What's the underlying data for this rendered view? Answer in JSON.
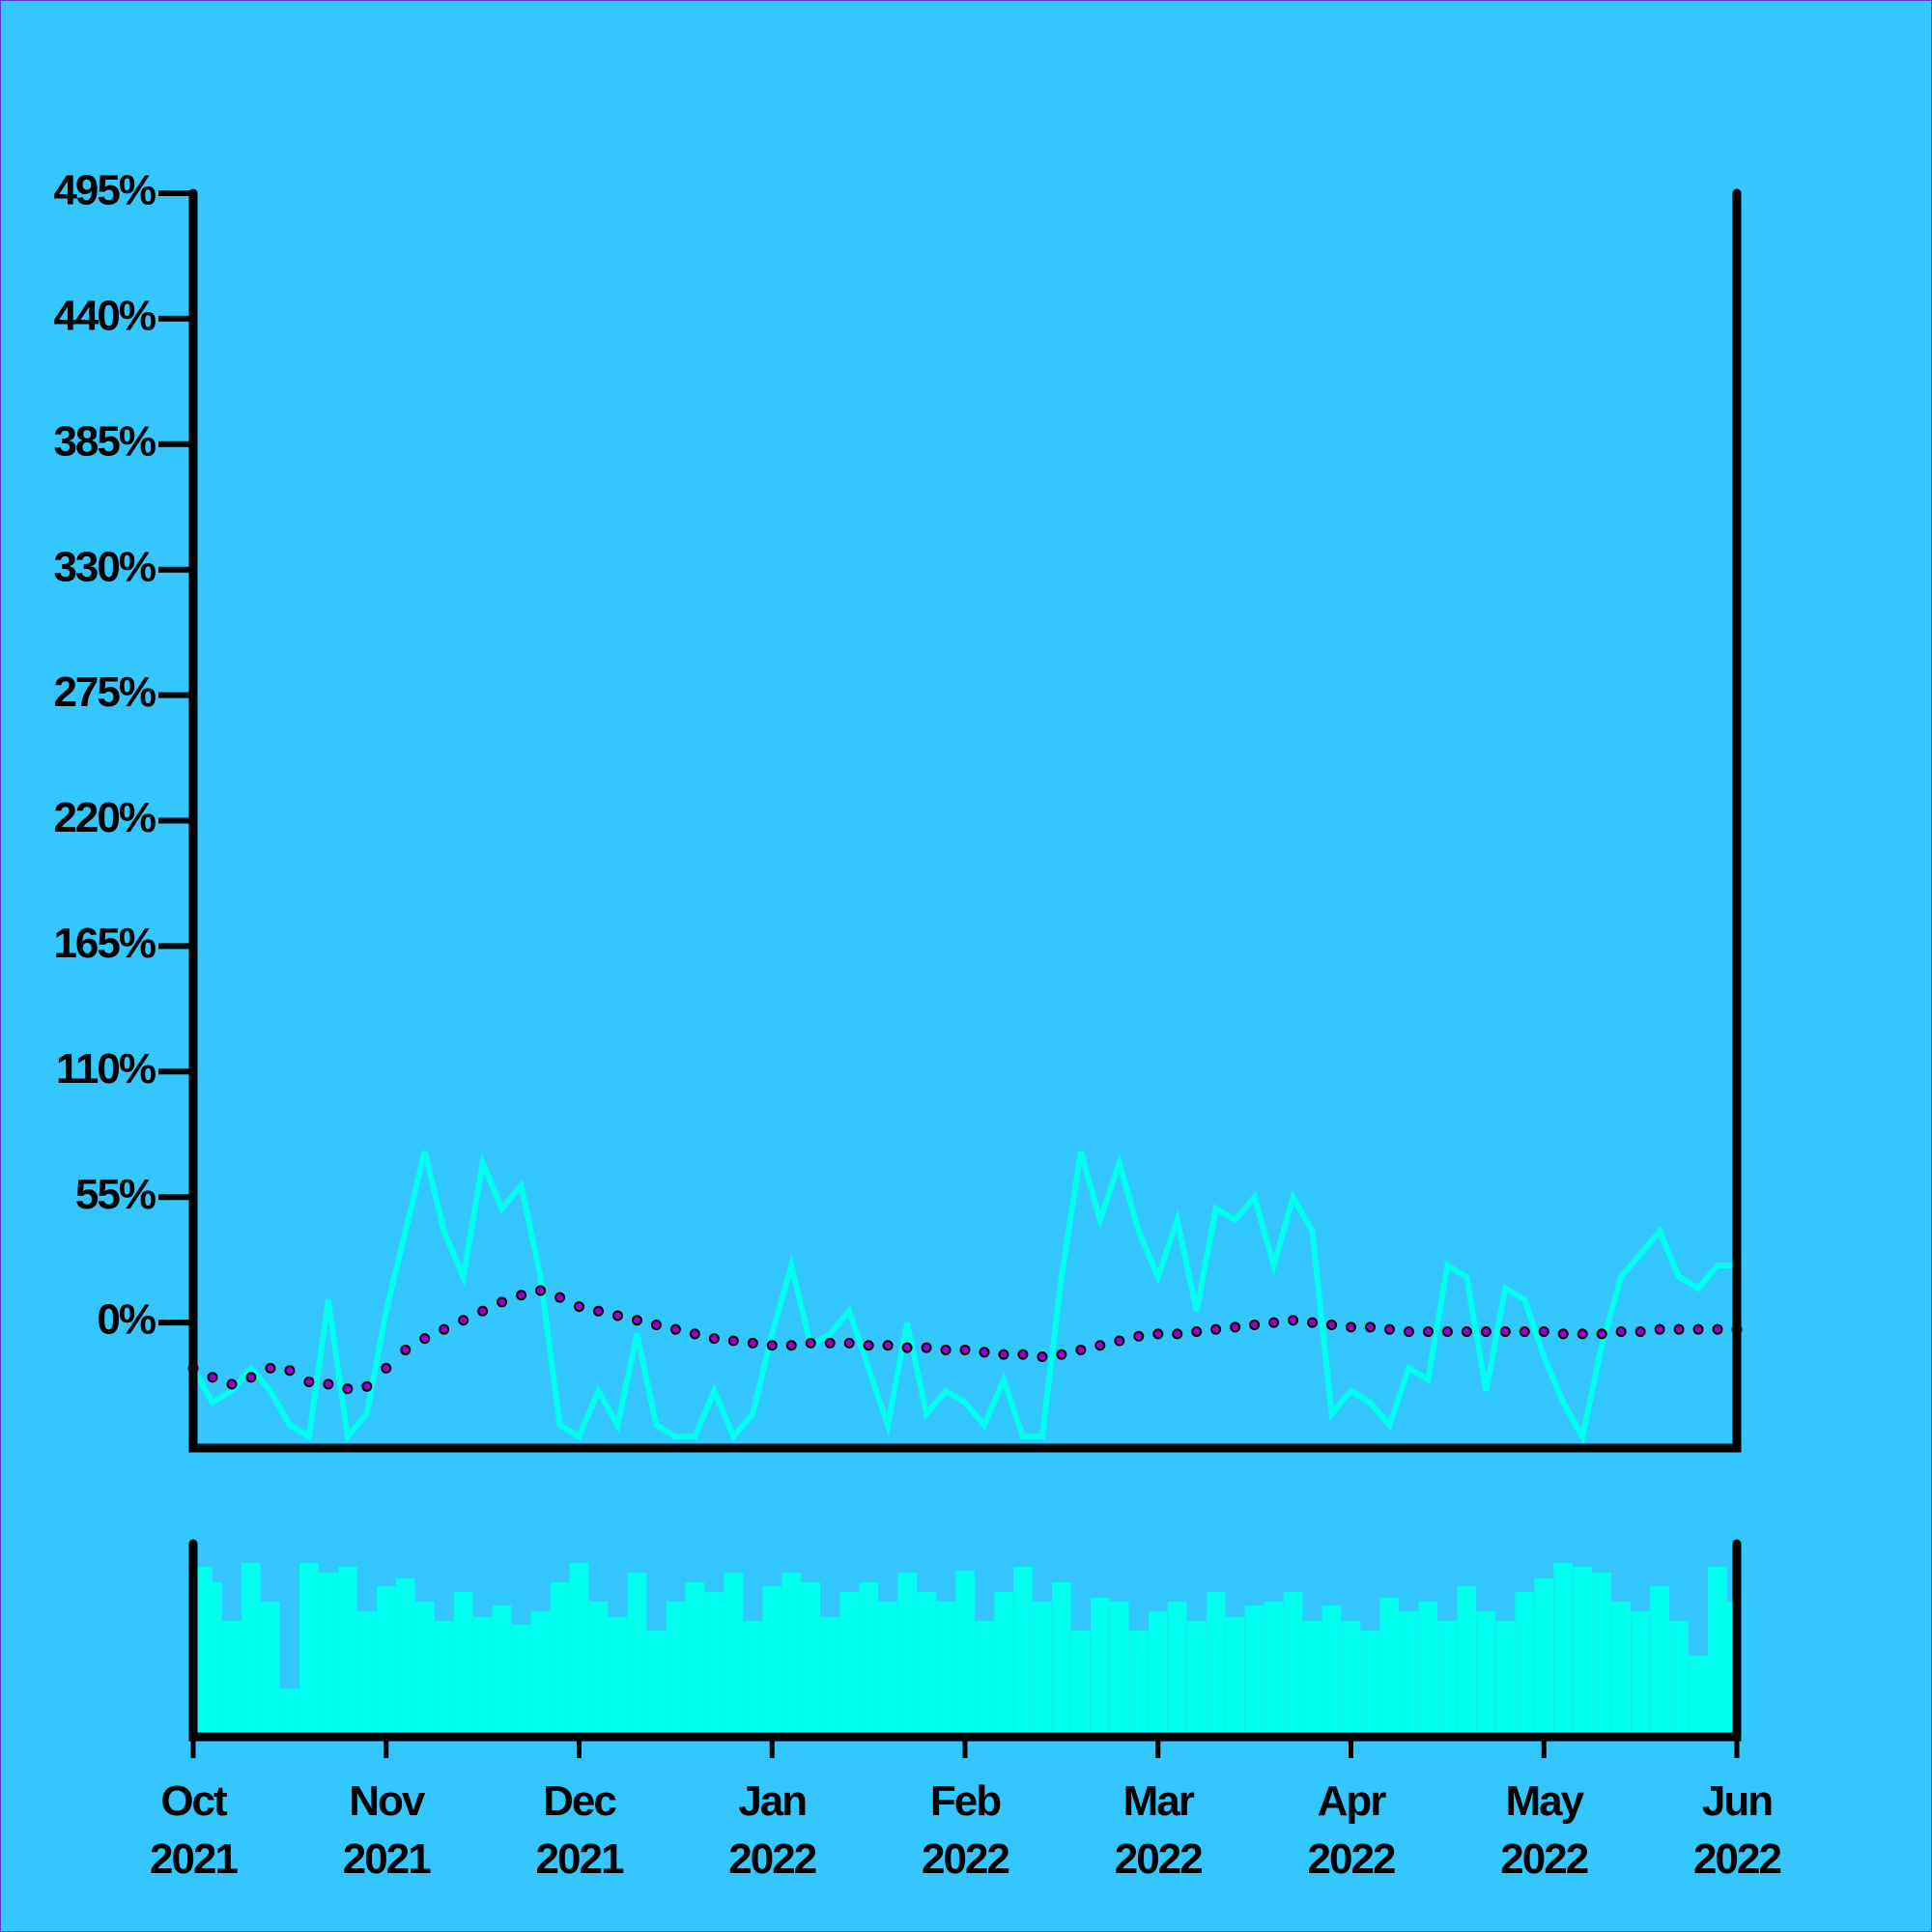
{
  "chart_data": [
    {
      "type": "line",
      "x": [
        0,
        0.1,
        0.2,
        0.3,
        0.4,
        0.5,
        0.6,
        0.7,
        0.8,
        0.9,
        1,
        1.1,
        1.2,
        1.3,
        1.4,
        1.5,
        1.6,
        1.7,
        1.8,
        1.9,
        2,
        2.1,
        2.2,
        2.3,
        2.4,
        2.5,
        2.6,
        2.7,
        2.8,
        2.9,
        3,
        3.1,
        3.2,
        3.3,
        3.4,
        3.5,
        3.6,
        3.7,
        3.8,
        3.9,
        4,
        4.1,
        4.2,
        4.3,
        4.4,
        4.5,
        4.6,
        4.7,
        4.8,
        4.9,
        5,
        5.1,
        5.2,
        5.3,
        5.4,
        5.5,
        5.6,
        5.7,
        5.8,
        5.9,
        6,
        6.1,
        6.2,
        6.3,
        6.4,
        6.5,
        6.6,
        6.7,
        6.8,
        6.9,
        7,
        7.1,
        7.2,
        7.3,
        7.4,
        7.5,
        7.6,
        7.7,
        7.8,
        7.9,
        8
      ],
      "series": [
        {
          "color": "#00ffee",
          "style": "solid",
          "values": [
            -20,
            -35,
            -30,
            -20,
            -30,
            -45,
            -50,
            10,
            -50,
            -40,
            5,
            40,
            75,
            40,
            20,
            70,
            50,
            60,
            20,
            -45,
            -50,
            -30,
            -45,
            -5,
            -45,
            -50,
            -50,
            -30,
            -50,
            -40,
            -5,
            25,
            -10,
            -5,
            5,
            -20,
            -45,
            0,
            -40,
            -30,
            -35,
            -45,
            -25,
            -50,
            -50,
            20,
            75,
            45,
            70,
            40,
            20,
            45,
            5,
            50,
            45,
            55,
            25,
            55,
            40,
            -40,
            -30,
            -35,
            -45,
            -20,
            -25,
            25,
            20,
            -30,
            15,
            10,
            -15,
            -35,
            -50,
            -10,
            20,
            30,
            40,
            20,
            15,
            25,
            25
          ]
        },
        {
          "color": "#9900cc",
          "style": "dots",
          "values": [
            -20,
            -24,
            -27,
            -24,
            -20,
            -21,
            -26,
            -27,
            -29,
            -28,
            -20,
            -12,
            -7,
            -3,
            1,
            5,
            9,
            12,
            14,
            11,
            7,
            5,
            3,
            1,
            -1,
            -3,
            -5,
            -7,
            -8,
            -9,
            -10,
            -10,
            -9,
            -9,
            -9,
            -10,
            -10,
            -11,
            -11,
            -12,
            -12,
            -13,
            -14,
            -14,
            -15,
            -14,
            -12,
            -10,
            -8,
            -6,
            -5,
            -5,
            -4,
            -3,
            -2,
            -1,
            0,
            1,
            0,
            -1,
            -2,
            -2,
            -3,
            -4,
            -4,
            -4,
            -4,
            -4,
            -4,
            -4,
            -4,
            -5,
            -5,
            -5,
            -4,
            -4,
            -3,
            -3,
            -3,
            -3,
            -3
          ]
        }
      ],
      "xlim": [
        0,
        8
      ],
      "ylim": [
        -55,
        495
      ],
      "yticks": [
        {
          "value": 0,
          "label": "0%"
        },
        {
          "value": 55,
          "label": "55%"
        },
        {
          "value": 110,
          "label": "110%"
        },
        {
          "value": 165,
          "label": "165%"
        },
        {
          "value": 220,
          "label": "220%"
        },
        {
          "value": 275,
          "label": "275%"
        },
        {
          "value": 330,
          "label": "330%"
        },
        {
          "value": 385,
          "label": "385%"
        },
        {
          "value": 440,
          "label": "440%"
        },
        {
          "value": 495,
          "label": "495%"
        }
      ]
    },
    {
      "type": "bar",
      "x": [
        0,
        0.1,
        0.2,
        0.3,
        0.4,
        0.5,
        0.6,
        0.7,
        0.8,
        0.9,
        1,
        1.1,
        1.2,
        1.3,
        1.4,
        1.5,
        1.6,
        1.7,
        1.8,
        1.9,
        2,
        2.1,
        2.2,
        2.3,
        2.4,
        2.5,
        2.6,
        2.7,
        2.8,
        2.9,
        3,
        3.1,
        3.2,
        3.3,
        3.4,
        3.5,
        3.6,
        3.7,
        3.8,
        3.9,
        4,
        4.1,
        4.2,
        4.3,
        4.4,
        4.5,
        4.6,
        4.7,
        4.8,
        4.9,
        5,
        5.1,
        5.2,
        5.3,
        5.4,
        5.5,
        5.6,
        5.7,
        5.8,
        5.9,
        6,
        6.1,
        6.2,
        6.3,
        6.4,
        6.5,
        6.6,
        6.7,
        6.8,
        6.9,
        7,
        7.1,
        7.2,
        7.3,
        7.4,
        7.5,
        7.6,
        7.7,
        7.8,
        7.9,
        8
      ],
      "color": "#00ffee",
      "values": [
        88,
        80,
        60,
        90,
        70,
        25,
        90,
        85,
        88,
        65,
        78,
        82,
        70,
        60,
        75,
        62,
        68,
        58,
        65,
        80,
        90,
        70,
        62,
        85,
        55,
        70,
        80,
        75,
        85,
        60,
        78,
        85,
        80,
        62,
        75,
        80,
        70,
        85,
        75,
        70,
        86,
        60,
        75,
        88,
        70,
        80,
        55,
        72,
        70,
        55,
        65,
        70,
        60,
        75,
        62,
        68,
        70,
        75,
        60,
        68,
        60,
        55,
        72,
        65,
        70,
        60,
        78,
        65,
        60,
        75,
        82,
        90,
        88,
        85,
        70,
        65,
        78,
        60,
        42,
        88,
        70
      ],
      "xlim": [
        0,
        8
      ],
      "ylim": [
        0,
        100
      ],
      "xticks": [
        {
          "value": 0,
          "label": "Oct 2021"
        },
        {
          "value": 1,
          "label": "Nov 2021"
        },
        {
          "value": 2,
          "label": "Dec 2021"
        },
        {
          "value": 3,
          "label": "Jan 2022"
        },
        {
          "value": 4,
          "label": "Feb 2022"
        },
        {
          "value": 5,
          "label": "Mar 2022"
        },
        {
          "value": 6,
          "label": "Apr 2022"
        },
        {
          "value": 7,
          "label": "May 2022"
        },
        {
          "value": 8,
          "label": "Jun 2022"
        }
      ]
    }
  ]
}
